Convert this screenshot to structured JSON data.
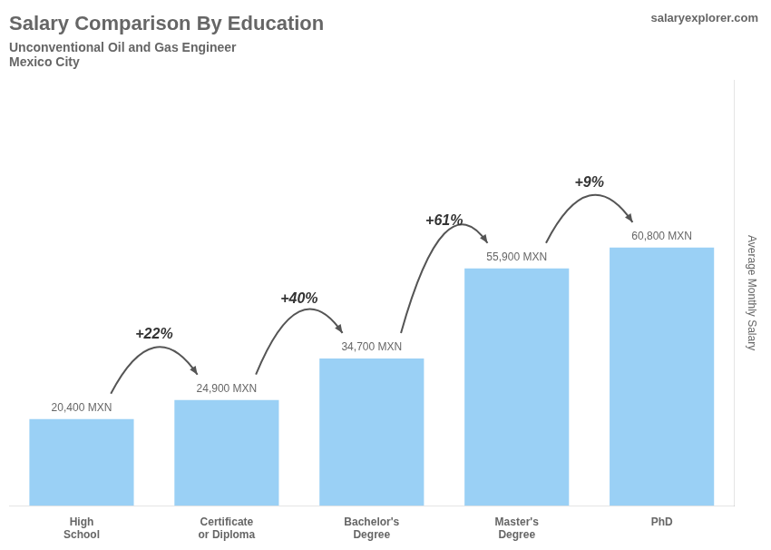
{
  "chart_data": {
    "type": "bar",
    "title": "Salary Comparison By Education",
    "subtitle": [
      "Unconventional Oil and Gas Engineer",
      "Mexico City"
    ],
    "ylabel": "Average Monthly Salary",
    "categories": [
      "High\nSchool",
      "Certificate\nor Diploma",
      "Bachelor's\nDegree",
      "Master's\nDegree",
      "PhD"
    ],
    "values": [
      20400,
      24900,
      34700,
      55900,
      60800
    ],
    "value_labels": [
      "20,400 MXN",
      "24,900 MXN",
      "34,700 MXN",
      "55,900 MXN",
      "60,800 MXN"
    ],
    "data_labels": true,
    "ylim": [
      0,
      100320
    ],
    "tick_labels": "x",
    "grid": false,
    "annotations": [
      {
        "text": "+22%",
        "from": "High\nSchool",
        "to": "Certificate\nor Diploma"
      },
      {
        "text": "+40%",
        "from": "Certificate\nor Diploma",
        "to": "Bachelor's\nDegree"
      },
      {
        "text": "+61%",
        "from": "Bachelor's\nDegree",
        "to": "Master's\nDegree"
      },
      {
        "text": "+9%",
        "from": "Master's\nDegree",
        "to": "PhD"
      },
      {
        "text": "salaryexplorer.com"
      }
    ]
  }
}
